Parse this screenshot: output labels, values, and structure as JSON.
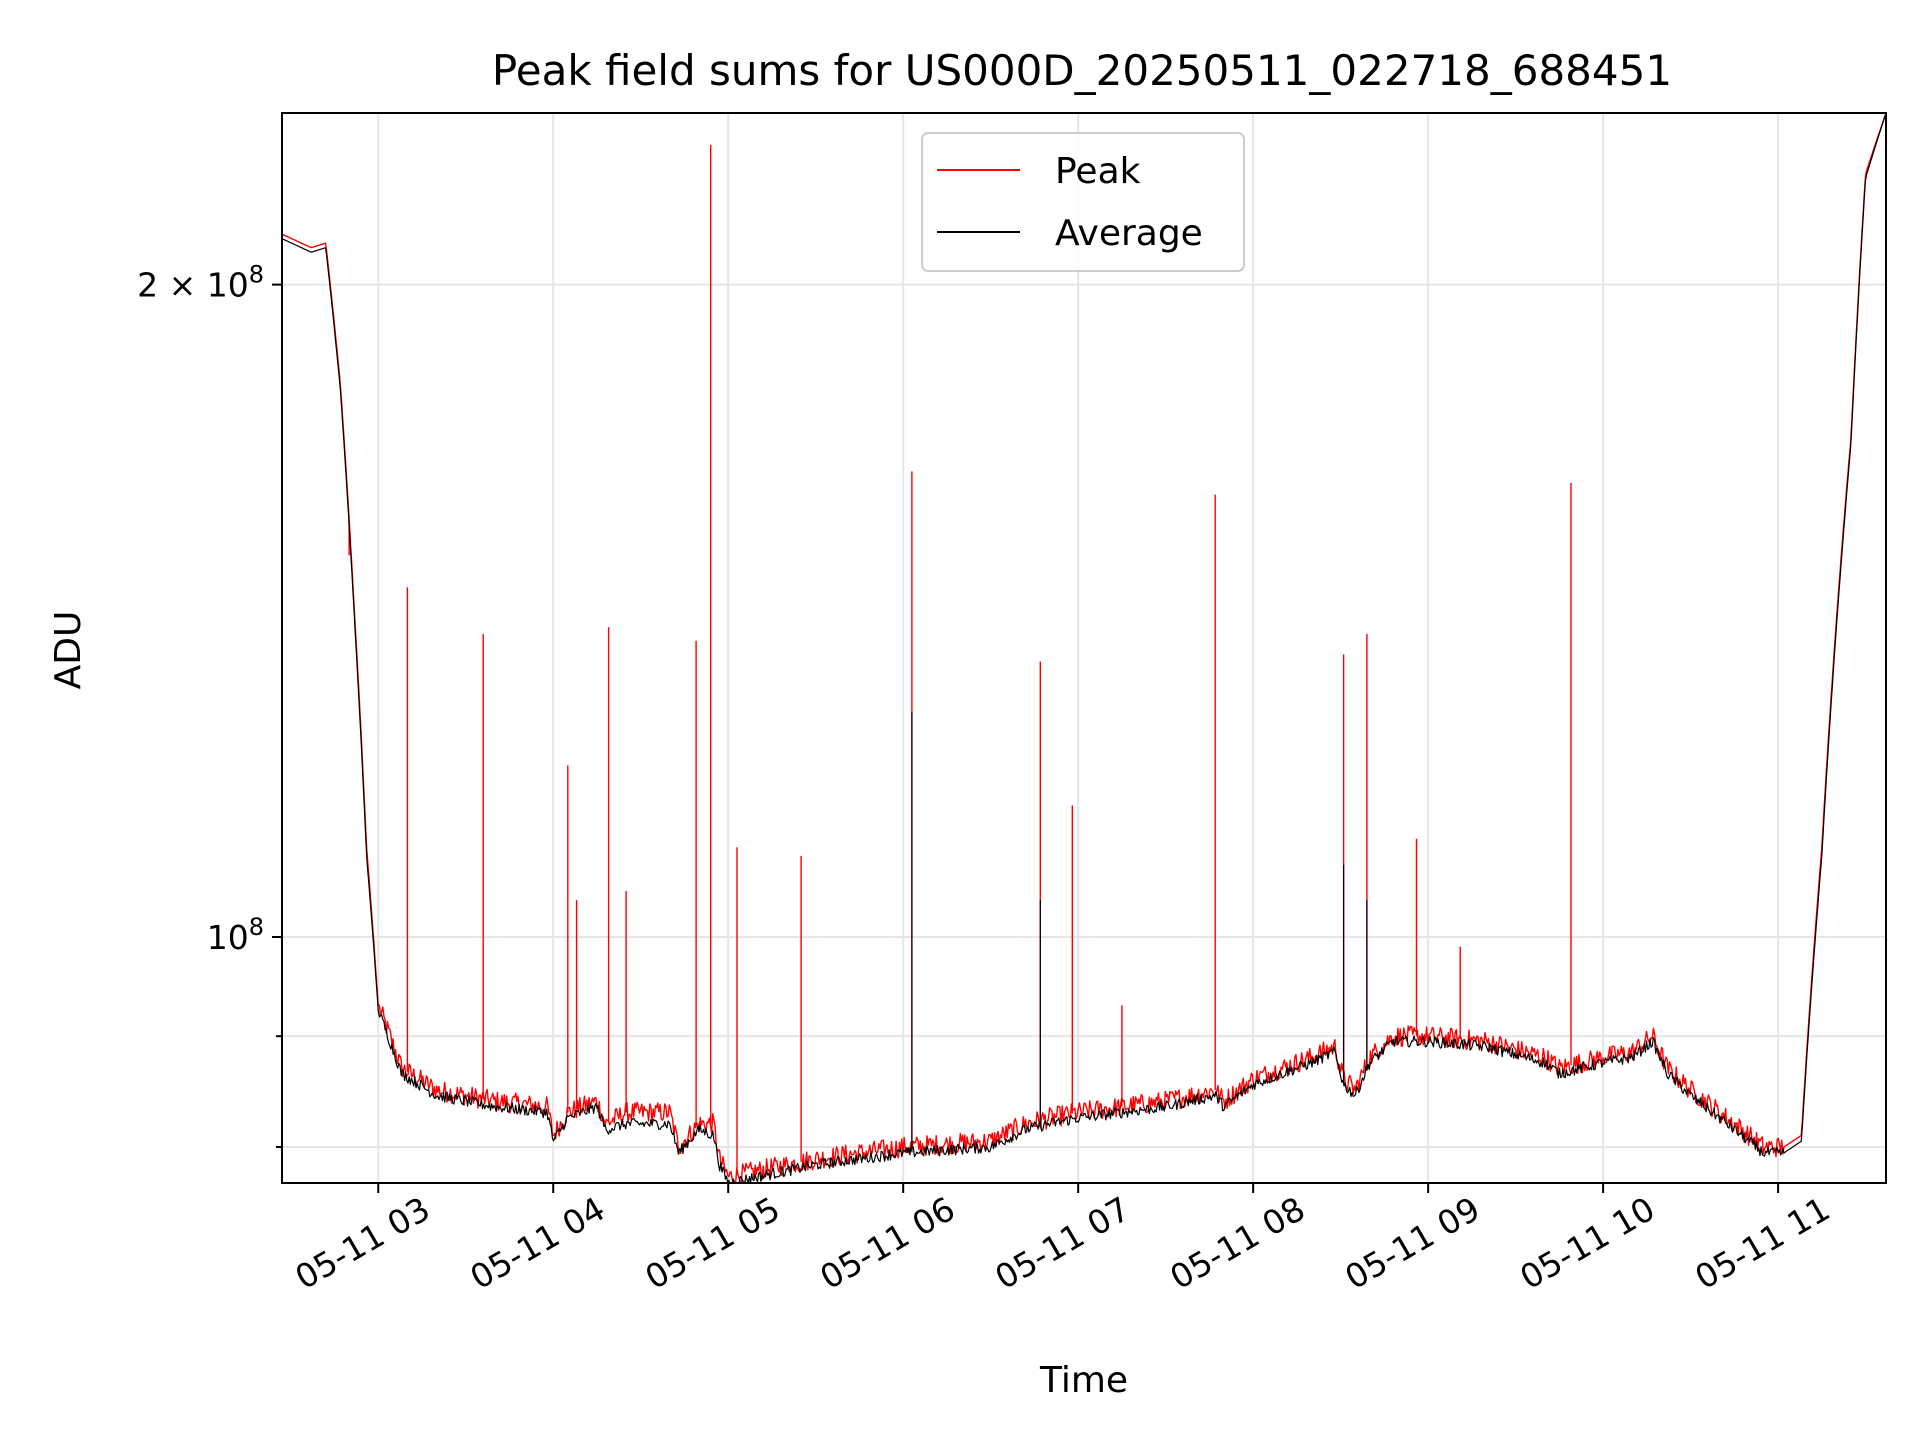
{
  "chart_data": {
    "type": "line",
    "title": "Peak field sums for US000D_20250511_022718_688451",
    "xlabel": "Time",
    "ylabel": "ADU",
    "x_range": [
      "2025-05-11 02:27",
      "2025-05-11 11:37"
    ],
    "y_scale": "log",
    "ylim": [
      77000000,
      240000000
    ],
    "grid": true,
    "legend_position": "upper-center",
    "x_tick_labels": [
      "05-11 03",
      "05-11 04",
      "05-11 05",
      "05-11 06",
      "05-11 07",
      "05-11 08",
      "05-11 09",
      "05-11 10",
      "05-11 11"
    ],
    "y_tick_labels": [
      {
        "value": 200000000,
        "base": "2 × 10",
        "exp": "8"
      },
      {
        "value": 100000000,
        "base": "10",
        "exp": "8"
      }
    ],
    "y_minor_ticks": [
      80000000,
      90000000
    ],
    "series": [
      {
        "name": "Peak",
        "color": "#ff0000"
      },
      {
        "name": "Average",
        "color": "#000000"
      }
    ],
    "baseline": {
      "x": [
        "2025-05-11 02:27",
        "2025-05-11 02:37",
        "2025-05-11 02:42",
        "2025-05-11 02:47",
        "2025-05-11 02:52",
        "2025-05-11 02:56",
        "2025-05-11 03:00",
        "2025-05-11 03:08",
        "2025-05-11 03:20",
        "2025-05-11 03:40",
        "2025-05-11 03:58",
        "2025-05-11 04:00",
        "2025-05-11 04:05",
        "2025-05-11 04:15",
        "2025-05-11 04:18",
        "2025-05-11 04:25",
        "2025-05-11 04:40",
        "2025-05-11 04:43",
        "2025-05-11 04:50",
        "2025-05-11 04:55",
        "2025-05-11 04:57",
        "2025-05-11 05:00",
        "2025-05-11 05:30",
        "2025-05-11 06:00",
        "2025-05-11 06:30",
        "2025-05-11 06:42",
        "2025-05-11 06:50",
        "2025-05-11 07:00",
        "2025-05-11 07:30",
        "2025-05-11 07:47",
        "2025-05-11 07:50",
        "2025-05-11 08:00",
        "2025-05-11 08:10",
        "2025-05-11 08:20",
        "2025-05-11 08:28",
        "2025-05-11 08:31",
        "2025-05-11 08:35",
        "2025-05-11 08:40",
        "2025-05-11 08:48",
        "2025-05-11 09:00",
        "2025-05-11 09:20",
        "2025-05-11 09:40",
        "2025-05-11 09:45",
        "2025-05-11 10:00",
        "2025-05-11 10:10",
        "2025-05-11 10:17",
        "2025-05-11 10:22",
        "2025-05-11 10:30",
        "2025-05-11 10:40",
        "2025-05-11 10:50",
        "2025-05-11 10:55",
        "2025-05-11 11:02",
        "2025-05-11 11:08",
        "2025-05-11 11:15",
        "2025-05-11 11:25",
        "2025-05-11 11:30",
        "2025-05-11 11:37"
      ],
      "peak": [
        211000000,
        208000000,
        209000000,
        180000000,
        140000000,
        110000000,
        93000000,
        87000000,
        85000000,
        84000000,
        83500000,
        81000000,
        83000000,
        84000000,
        82000000,
        83000000,
        83000000,
        80000000,
        82000000,
        82000000,
        79000000,
        77500000,
        79000000,
        80000000,
        80500000,
        82000000,
        82500000,
        83000000,
        84000000,
        85000000,
        84000000,
        86000000,
        87000000,
        88000000,
        89000000,
        86000000,
        85000000,
        88000000,
        90000000,
        90000000,
        89500000,
        88000000,
        87000000,
        88000000,
        88500000,
        90000000,
        87000000,
        85000000,
        83000000,
        81000000,
        80000000,
        80000000,
        81000000,
        110000000,
        170000000,
        225000000,
        240000000
      ],
      "avg": [
        210000000,
        207000000,
        208000000,
        179000000,
        139000000,
        109000000,
        92500000,
        86500000,
        84500000,
        83500000,
        83000000,
        80500000,
        82500000,
        83500000,
        81500000,
        82000000,
        82000000,
        79500000,
        81500000,
        81000000,
        78500000,
        77000000,
        78500000,
        79500000,
        80000000,
        81500000,
        82000000,
        82500000,
        83500000,
        84500000,
        83500000,
        85500000,
        86500000,
        87500000,
        88500000,
        85500000,
        84500000,
        87500000,
        89500000,
        89500000,
        89000000,
        87500000,
        86500000,
        87500000,
        88000000,
        89500000,
        86500000,
        84500000,
        82500000,
        80500000,
        79500000,
        79500000,
        80500000,
        109000000,
        169000000,
        224000000,
        240000000
      ]
    },
    "peak_spikes": [
      {
        "x": "2025-05-11 02:50",
        "y": 150000000
      },
      {
        "x": "2025-05-11 03:10",
        "y": 145000000
      },
      {
        "x": "2025-05-11 03:36",
        "y": 138000000
      },
      {
        "x": "2025-05-11 04:05",
        "y": 120000000
      },
      {
        "x": "2025-05-11 04:08",
        "y": 104000000
      },
      {
        "x": "2025-05-11 04:19",
        "y": 139000000
      },
      {
        "x": "2025-05-11 04:25",
        "y": 105000000
      },
      {
        "x": "2025-05-11 04:49",
        "y": 137000000
      },
      {
        "x": "2025-05-11 04:54",
        "y": 232000000
      },
      {
        "x": "2025-05-11 05:03",
        "y": 110000000
      },
      {
        "x": "2025-05-11 05:25",
        "y": 109000000
      },
      {
        "x": "2025-05-11 06:03",
        "y": 164000000
      },
      {
        "x": "2025-05-11 06:47",
        "y": 134000000
      },
      {
        "x": "2025-05-11 06:58",
        "y": 115000000
      },
      {
        "x": "2025-05-11 07:15",
        "y": 93000000
      },
      {
        "x": "2025-05-11 07:47",
        "y": 160000000
      },
      {
        "x": "2025-05-11 08:31",
        "y": 135000000
      },
      {
        "x": "2025-05-11 08:39",
        "y": 138000000
      },
      {
        "x": "2025-05-11 08:56",
        "y": 111000000
      },
      {
        "x": "2025-05-11 09:11",
        "y": 99000000
      },
      {
        "x": "2025-05-11 09:49",
        "y": 162000000
      }
    ],
    "avg_spikes": [
      {
        "x": "2025-05-11 06:03",
        "y": 127000000
      },
      {
        "x": "2025-05-11 06:47",
        "y": 104000000
      },
      {
        "x": "2025-05-11 08:31",
        "y": 108000000
      },
      {
        "x": "2025-05-11 08:39",
        "y": 104000000
      }
    ]
  }
}
